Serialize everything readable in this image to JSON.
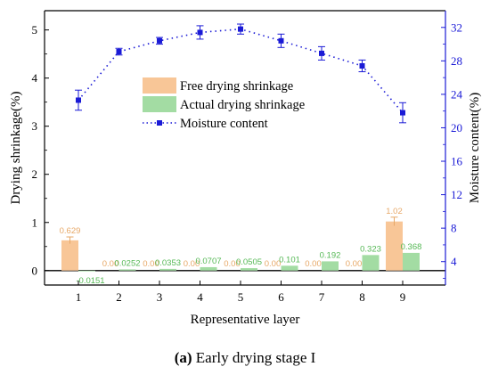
{
  "caption": {
    "letter": "(a)",
    "text": "Early drying stage I"
  },
  "chart_data": {
    "type": "bar",
    "xlabel": "Representative layer",
    "ylabel": "Drying shrinkage(%)",
    "ylabel_right": "Moisture content(%)",
    "categories": [
      "1",
      "2",
      "3",
      "4",
      "5",
      "6",
      "7",
      "8",
      "9"
    ],
    "ylim": [
      -0.3,
      5.4
    ],
    "y_ticks": [
      0,
      1,
      2,
      3,
      4,
      5
    ],
    "ylim_right": [
      1.2,
      34
    ],
    "y_ticks_right": [
      4,
      8,
      12,
      16,
      20,
      24,
      28,
      32
    ],
    "legend_position": "upper-center",
    "series": [
      {
        "name": "Free drying shrinkage",
        "kind": "bar",
        "color": "#f8c697",
        "label_color": "#e7a867",
        "values": [
          0.629,
          0,
          0,
          0,
          0,
          0,
          0,
          0,
          1.02
        ],
        "labels": [
          "0.629",
          "0.00",
          "0.00",
          "0.00",
          "0.00",
          "0.00",
          "0.00",
          "0.00",
          "1.02"
        ],
        "errors": [
          0.07,
          0,
          0,
          0,
          0,
          0,
          0,
          0,
          0.09
        ]
      },
      {
        "name": "Actual drying shrinkage",
        "kind": "bar",
        "color": "#a3dca3",
        "label_color": "#55b855",
        "values": [
          -0.0151,
          0.0252,
          0.0353,
          0.0707,
          0.0505,
          0.101,
          0.192,
          0.323,
          0.368
        ],
        "labels": [
          "-0.0151",
          "0.0252",
          "0.0353",
          "0.0707",
          "0.0505",
          "0.101",
          "0.192",
          "0.323",
          "0.368"
        ]
      },
      {
        "name": "Moisture content",
        "kind": "line",
        "color": "#1a1ad6",
        "values": [
          23.3,
          29.1,
          30.4,
          31.4,
          31.8,
          30.4,
          28.9,
          27.4,
          21.8
        ],
        "errors": [
          1.2,
          0.4,
          0.4,
          0.8,
          0.6,
          0.8,
          0.8,
          0.7,
          1.2
        ]
      }
    ]
  }
}
